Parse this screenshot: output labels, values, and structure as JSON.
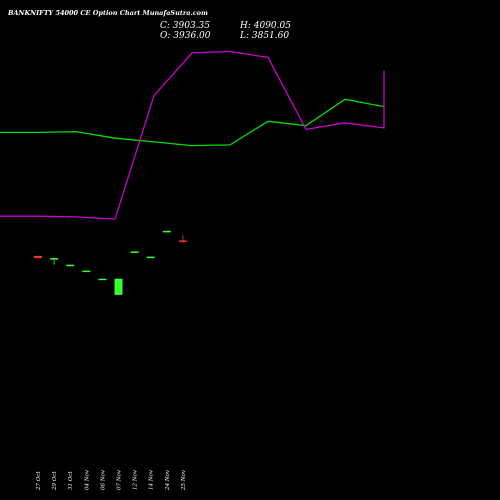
{
  "header": {
    "title": "BANKNIFTY 54000  CE Option  Chart MunafaSutra.com",
    "close": "C: 3903.35",
    "high": "H: 4090.05",
    "open": "O: 3936.00",
    "low": "L: 3851.60"
  },
  "chart_data": {
    "type": "candlestick",
    "title": "BANKNIFTY 54000  CE Option  Chart MunafaSutra.com",
    "categories": [
      "27 Oct",
      "29 Oct",
      "31 Oct",
      "04 Nov",
      "06 Nov",
      "07 Nov",
      "12 Nov",
      "14 Nov",
      "24 Nov",
      "25 Nov"
    ],
    "candles": [
      {
        "date": "27 Oct",
        "open": 42,
        "high": 42,
        "low": 39,
        "close": 39,
        "color": "#ff3333"
      },
      {
        "date": "29 Oct",
        "open": 38,
        "high": 39,
        "low": 30,
        "close": 39,
        "color": "#33ff33"
      },
      {
        "date": "31 Oct",
        "open": 30,
        "high": 30,
        "low": 29,
        "close": 30,
        "color": "#33ff33"
      },
      {
        "date": "04 Nov",
        "open": 22,
        "high": 22,
        "low": 21,
        "close": 22,
        "color": "#33ff33"
      },
      {
        "date": "06 Nov",
        "open": 11,
        "high": 11,
        "low": 10,
        "close": 11,
        "color": "#33ff33"
      },
      {
        "date": "07 Nov",
        "open": -11,
        "high": 11,
        "low": -11,
        "close": 11,
        "color": "#33ff33"
      },
      {
        "date": "12 Nov",
        "open": 46,
        "high": 48,
        "low": 46,
        "close": 48,
        "color": "#33ff33"
      },
      {
        "date": "14 Nov",
        "open": 40,
        "high": 41,
        "low": 40,
        "close": 41,
        "color": "#33ff33"
      },
      {
        "date": "24 Nov",
        "open": 75,
        "high": 76,
        "low": 75,
        "close": 76,
        "color": "#33ff33"
      },
      {
        "date": "25 Nov",
        "open": 63,
        "high": 70,
        "low": 60,
        "close": 61,
        "color": "#ff3333"
      }
    ],
    "series": [
      {
        "color": "#00dd00",
        "values": [
          210,
          210,
          211,
          202,
          197,
          192,
          193,
          225,
          219,
          255,
          245
        ],
        "x": [
          0,
          1,
          2,
          3,
          4,
          5,
          6,
          7,
          8,
          9,
          10
        ]
      },
      {
        "color": "#cc00cc",
        "values": [
          96,
          96,
          95,
          92,
          260,
          318,
          320,
          312,
          214,
          223,
          216,
          294
        ],
        "x": [
          0,
          1,
          2,
          3,
          4,
          5,
          6,
          7,
          8,
          9,
          10,
          11
        ]
      }
    ],
    "ylim": [
      -290,
      390
    ],
    "grid": false,
    "background": "#000000"
  }
}
